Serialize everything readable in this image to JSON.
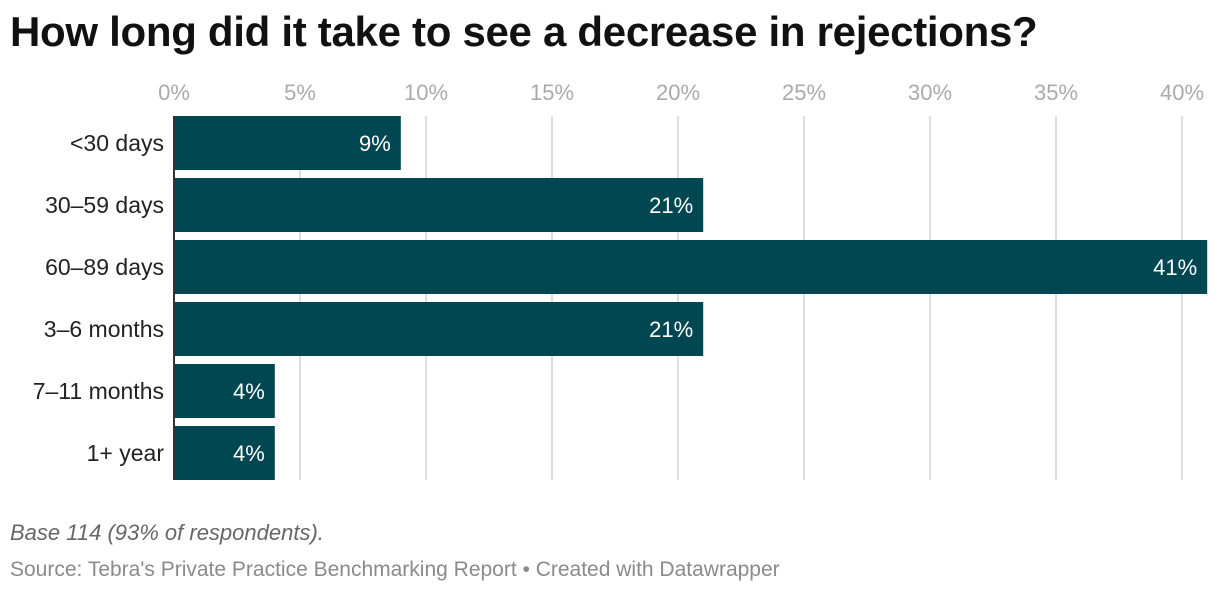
{
  "title": "How long did it take to see a decrease in rejections?",
  "note": "Base 114 (93% of respondents).",
  "source": "Source: Tebra's Private Practice Benchmarking Report • Created with Datawrapper",
  "colors": {
    "bar": "#014751",
    "grid": "#dddddd",
    "axis_tick": "#aaaaaa",
    "label": "#222222",
    "value_label": "#ffffff"
  },
  "chart_data": {
    "type": "bar",
    "orientation": "horizontal",
    "categories": [
      "<30 days",
      "30–59 days",
      "60–89 days",
      "3–6 months",
      "7–11 months",
      "1+ year"
    ],
    "values": [
      9,
      21,
      41,
      21,
      4,
      4
    ],
    "value_labels": [
      "9%",
      "21%",
      "41%",
      "21%",
      "4%",
      "4%"
    ],
    "x_ticks": [
      0,
      5,
      10,
      15,
      20,
      25,
      30,
      35,
      40
    ],
    "x_tick_labels": [
      "0%",
      "5%",
      "10%",
      "15%",
      "20%",
      "25%",
      "30%",
      "35%",
      "40%"
    ],
    "xlim": [
      0,
      41
    ],
    "grid": true,
    "xlabel": "",
    "ylabel": ""
  }
}
